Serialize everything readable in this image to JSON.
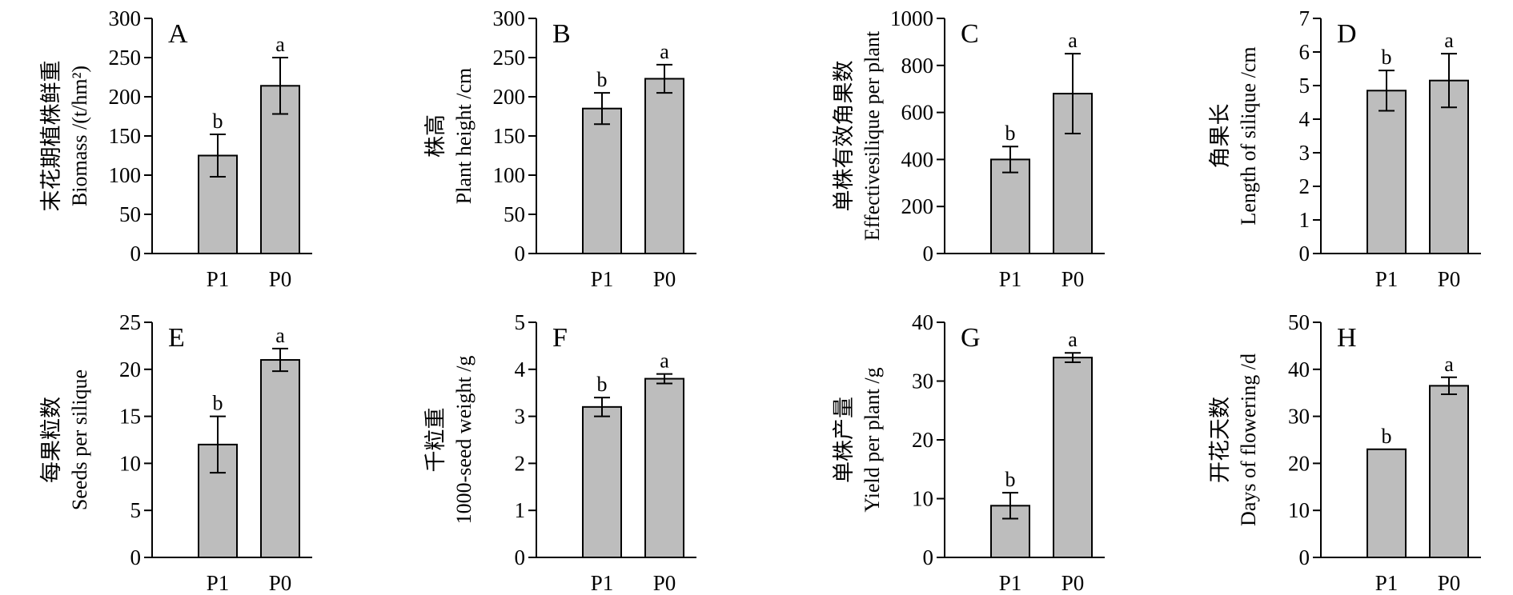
{
  "colors": {
    "bar_fill": "#bdbdbd",
    "stroke": "#000000",
    "background": "#ffffff"
  },
  "chart_data": [
    {
      "panel": "A",
      "type": "bar",
      "categories": [
        "P1",
        "P0"
      ],
      "values": [
        125,
        214
      ],
      "errors": [
        27,
        36
      ],
      "significance": [
        "b",
        "a"
      ],
      "ylabel_zh": "末花期植株鲜重",
      "ylabel_en": "Biomass /(t/hm²)",
      "ylim": [
        0,
        300
      ],
      "yticks": [
        0,
        50,
        100,
        150,
        200,
        250,
        300
      ]
    },
    {
      "panel": "B",
      "type": "bar",
      "categories": [
        "P1",
        "P0"
      ],
      "values": [
        185,
        223
      ],
      "errors": [
        20,
        18
      ],
      "significance": [
        "b",
        "a"
      ],
      "ylabel_zh": "株高",
      "ylabel_en": "Plant height /cm",
      "ylim": [
        0,
        300
      ],
      "yticks": [
        0,
        50,
        100,
        150,
        200,
        250,
        300
      ]
    },
    {
      "panel": "C",
      "type": "bar",
      "categories": [
        "P1",
        "P0"
      ],
      "values": [
        400,
        680
      ],
      "errors": [
        55,
        170
      ],
      "significance": [
        "b",
        "a"
      ],
      "ylabel_zh": "单株有效角果数",
      "ylabel_en": "Effectivesilique per plant",
      "ylim": [
        0,
        1000
      ],
      "yticks": [
        0,
        200,
        400,
        600,
        800,
        1000
      ]
    },
    {
      "panel": "D",
      "type": "bar",
      "categories": [
        "P1",
        "P0"
      ],
      "values": [
        4.85,
        5.15
      ],
      "errors": [
        0.6,
        0.8
      ],
      "significance": [
        "b",
        "a"
      ],
      "ylabel_zh": "角果长",
      "ylabel_en": "Length of silique /cm",
      "ylim": [
        0,
        7
      ],
      "yticks": [
        0,
        1,
        2,
        3,
        4,
        5,
        6,
        7
      ]
    },
    {
      "panel": "E",
      "type": "bar",
      "categories": [
        "P1",
        "P0"
      ],
      "values": [
        12,
        21
      ],
      "errors": [
        3,
        1.2
      ],
      "significance": [
        "b",
        "a"
      ],
      "ylabel_zh": "每果粒数",
      "ylabel_en": "Seeds per silique",
      "ylim": [
        0,
        25
      ],
      "yticks": [
        0,
        5,
        10,
        15,
        20,
        25
      ]
    },
    {
      "panel": "F",
      "type": "bar",
      "categories": [
        "P1",
        "P0"
      ],
      "values": [
        3.2,
        3.8
      ],
      "errors": [
        0.2,
        0.1
      ],
      "significance": [
        "b",
        "a"
      ],
      "ylabel_zh": "千粒重",
      "ylabel_en": "1000-seed weight /g",
      "ylim": [
        0,
        5
      ],
      "yticks": [
        0,
        1,
        2,
        3,
        4,
        5
      ]
    },
    {
      "panel": "G",
      "type": "bar",
      "categories": [
        "P1",
        "P0"
      ],
      "values": [
        8.8,
        34
      ],
      "errors": [
        2.2,
        0.8
      ],
      "significance": [
        "b",
        "a"
      ],
      "ylabel_zh": "单株产量",
      "ylabel_en": "Yield per plant /g",
      "ylim": [
        0,
        40
      ],
      "yticks": [
        0,
        10,
        20,
        30,
        40
      ]
    },
    {
      "panel": "H",
      "type": "bar",
      "categories": [
        "P1",
        "P0"
      ],
      "values": [
        23,
        36.5
      ],
      "errors": [
        0,
        1.8
      ],
      "significance": [
        "b",
        "a"
      ],
      "ylabel_zh": "开花天数",
      "ylabel_en": "Days of flowering /d",
      "ylim": [
        0,
        50
      ],
      "yticks": [
        0,
        10,
        20,
        30,
        40,
        50
      ]
    }
  ]
}
